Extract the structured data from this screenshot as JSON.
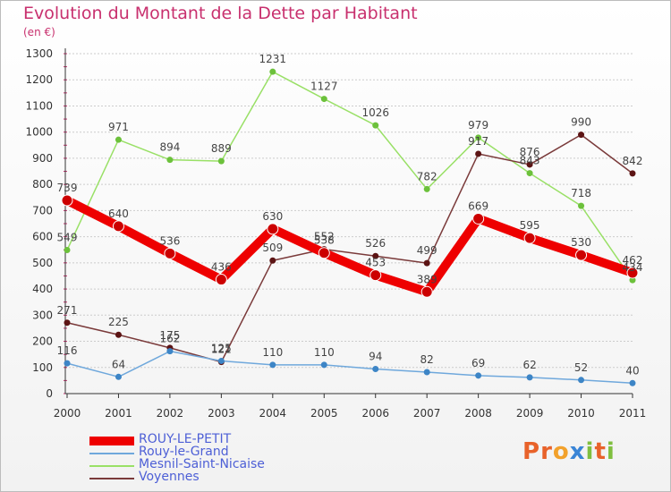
{
  "header": {
    "title": "Evolution du Montant de la Dette par Habitant",
    "subtitle": "(en €)"
  },
  "logo": {
    "letters": [
      "P",
      "r",
      "o",
      "x",
      "i",
      "t",
      "i"
    ]
  },
  "colors": {
    "title": "#c8306e",
    "legend_text": "#4d5fd6",
    "grid": "#cccccc",
    "axis": "#333333",
    "logo_letters": [
      "#e8622a",
      "#e8622a",
      "#f2a12b",
      "#3a85d6",
      "#7fbf3f",
      "#e8622a",
      "#7fbf3f"
    ]
  },
  "chart_data": {
    "type": "line",
    "title": "Evolution du Montant de la Dette par Habitant",
    "subtitle": "(en €)",
    "xlabel": "",
    "ylabel": "",
    "x": [
      2000,
      2001,
      2002,
      2003,
      2004,
      2005,
      2006,
      2007,
      2008,
      2009,
      2010,
      2011
    ],
    "ylim": [
      0,
      1300
    ],
    "yticks": [
      0,
      100,
      200,
      300,
      400,
      500,
      600,
      700,
      800,
      900,
      1000,
      1100,
      1200,
      1300
    ],
    "grid": "horizontal",
    "legend_position": "bottom-left",
    "series": [
      {
        "name": "ROUY-LE-PETIT",
        "color": "#ee0000",
        "marker": "#cc0000",
        "emphasis": true,
        "values": [
          739,
          640,
          536,
          436,
          630,
          538,
          453,
          389,
          669,
          595,
          530,
          462
        ]
      },
      {
        "name": "Rouy-le-Grand",
        "color": "#6fa8dc",
        "marker": "#3d85c6",
        "emphasis": false,
        "values": [
          116,
          64,
          162,
          125,
          110,
          110,
          94,
          82,
          69,
          62,
          52,
          40
        ]
      },
      {
        "name": "Mesnil-Saint-Nicaise",
        "color": "#99e066",
        "marker": "#6cc13b",
        "emphasis": false,
        "values": [
          549,
          971,
          894,
          889,
          1231,
          1127,
          1026,
          782,
          979,
          843,
          718,
          434
        ]
      },
      {
        "name": "Voyennes",
        "color": "#7a3a3a",
        "marker": "#5c1414",
        "emphasis": false,
        "values": [
          271,
          225,
          175,
          121,
          509,
          552,
          526,
          499,
          917,
          876,
          990,
          842
        ]
      }
    ]
  }
}
